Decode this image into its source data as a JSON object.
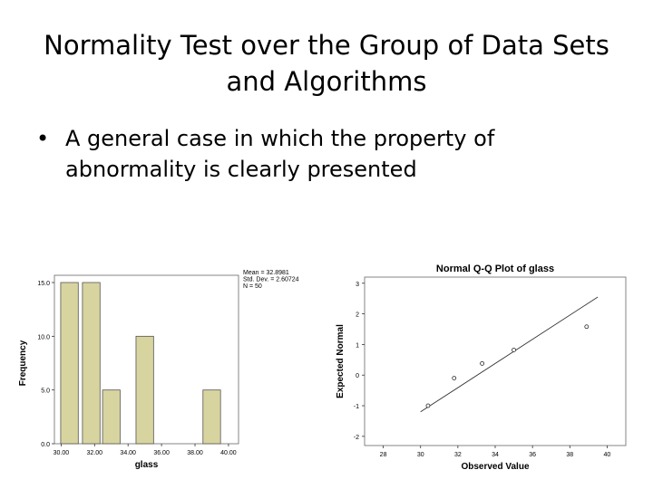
{
  "slide": {
    "title_line1": "Normality Test over the Group of Data Sets",
    "title_line2": "and Algorithms",
    "bullet_glyph": "•",
    "bullet_line1": "A general case in which the property of",
    "bullet_line2": "abnormality is clearly presented"
  },
  "chart_data": [
    {
      "type": "bar",
      "title": "",
      "xlabel": "glass",
      "ylabel": "Frequency",
      "categories": [
        "30.00",
        "32.00",
        "34.00",
        "36.00",
        "38.00",
        "40.00"
      ],
      "bars": [
        {
          "x": 30.5,
          "value": 15
        },
        {
          "x": 31.8,
          "value": 15
        },
        {
          "x": 33.0,
          "value": 5
        },
        {
          "x": 35.0,
          "value": 10
        },
        {
          "x": 39.0,
          "value": 5
        }
      ],
      "bar_color": "#d8d4a0",
      "xlim": [
        29.6,
        40.6
      ],
      "ylim": [
        0,
        15
      ],
      "yticks": [
        "0.0",
        "5.0",
        "10.0",
        "15.0"
      ],
      "ytick_values": [
        0,
        5,
        10,
        15
      ],
      "xtick_values": [
        30,
        32,
        34,
        36,
        38,
        40
      ],
      "stats": [
        "Mean = 32.8981",
        "Std. Dev. = 2.60724",
        "N = 50"
      ]
    },
    {
      "type": "scatter",
      "title": "Normal Q-Q Plot of glass",
      "xlabel": "Observed Value",
      "ylabel": "Expected Normal",
      "xlim": [
        27,
        41
      ],
      "ylim": [
        -2.3,
        3.2
      ],
      "xticks": [
        "28",
        "30",
        "32",
        "34",
        "36",
        "38",
        "40"
      ],
      "xtick_values": [
        28,
        30,
        32,
        34,
        36,
        38,
        40
      ],
      "yticks": [
        "-2",
        "-1",
        "0",
        "1",
        "2",
        "3"
      ],
      "ytick_values": [
        -2,
        -1,
        0,
        1,
        2,
        3
      ],
      "points": [
        {
          "x": 30.4,
          "y": -1.0
        },
        {
          "x": 31.8,
          "y": -0.1
        },
        {
          "x": 33.3,
          "y": 0.38
        },
        {
          "x": 35.0,
          "y": 0.82
        },
        {
          "x": 38.9,
          "y": 1.58
        }
      ],
      "reference_line": [
        {
          "x": 30.0,
          "y": -1.2
        },
        {
          "x": 39.5,
          "y": 2.55
        }
      ]
    }
  ]
}
